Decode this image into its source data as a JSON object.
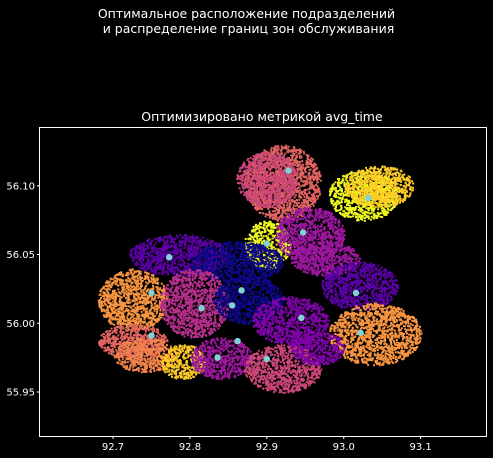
{
  "figure": {
    "suptitle_line1": "Оптимальное расположение подразделений",
    "suptitle_line2": " и распределение границ зон обслуживания"
  },
  "chart_data": {
    "type": "scatter",
    "title": "Оптимизировано метрикой avg_time",
    "xlabel": "",
    "ylabel": "",
    "xlim": [
      92.605,
      93.185
    ],
    "ylim": [
      55.918,
      56.142
    ],
    "xticks": [
      92.7,
      92.8,
      92.9,
      93.0,
      93.1
    ],
    "yticks": [
      55.95,
      56.0,
      56.05,
      56.1
    ],
    "grid": false,
    "legend": "none",
    "colormap": "plasma",
    "zone_colors": [
      "#0d0887",
      "#5c01a6",
      "#7e03a8",
      "#9c179e",
      "#b52f8c",
      "#cc4778",
      "#e16462",
      "#f2844b",
      "#f89540",
      "#fdca26",
      "#f0f921"
    ],
    "center_color": "#7fd3d6",
    "centers": [
      {
        "x": 92.928,
        "y": 56.111
      },
      {
        "x": 93.032,
        "y": 56.091
      },
      {
        "x": 92.947,
        "y": 56.066
      },
      {
        "x": 92.9,
        "y": 56.058
      },
      {
        "x": 92.773,
        "y": 56.048
      },
      {
        "x": 92.75,
        "y": 56.022
      },
      {
        "x": 92.867,
        "y": 56.024
      },
      {
        "x": 93.016,
        "y": 56.022
      },
      {
        "x": 92.855,
        "y": 56.013
      },
      {
        "x": 92.815,
        "y": 56.011
      },
      {
        "x": 92.945,
        "y": 56.004
      },
      {
        "x": 92.75,
        "y": 55.991
      },
      {
        "x": 93.022,
        "y": 55.993
      },
      {
        "x": 92.862,
        "y": 55.987
      },
      {
        "x": 92.836,
        "y": 55.975
      },
      {
        "x": 92.9,
        "y": 55.974
      }
    ],
    "zones": [
      {
        "color": "#e16462",
        "x": [
          92.87,
          92.97
        ],
        "y": [
          56.075,
          56.13
        ]
      },
      {
        "color": "#cc4778",
        "x": [
          92.86,
          92.94
        ],
        "y": [
          56.085,
          56.125
        ]
      },
      {
        "color": "#f0f921",
        "x": [
          92.98,
          93.07
        ],
        "y": [
          56.075,
          56.112
        ]
      },
      {
        "color": "#fdca26",
        "x": [
          93.0,
          93.09
        ],
        "y": [
          56.085,
          56.115
        ]
      },
      {
        "color": "#f0f921",
        "x": [
          92.87,
          92.93
        ],
        "y": [
          56.04,
          56.075
        ]
      },
      {
        "color": "#9c179e",
        "x": [
          92.91,
          93.0
        ],
        "y": [
          56.045,
          56.085
        ]
      },
      {
        "color": "#9c179e",
        "x": [
          92.93,
          93.02
        ],
        "y": [
          56.035,
          56.06
        ]
      },
      {
        "color": "#5c01a6",
        "x": [
          92.72,
          92.85
        ],
        "y": [
          56.035,
          56.065
        ]
      },
      {
        "color": "#0d0887",
        "x": [
          92.8,
          92.92
        ],
        "y": [
          56.03,
          56.06
        ]
      },
      {
        "color": "#f89540",
        "x": [
          92.68,
          92.77
        ],
        "y": [
          55.995,
          56.04
        ]
      },
      {
        "color": "#b52f8c",
        "x": [
          92.76,
          92.85
        ],
        "y": [
          55.99,
          56.04
        ]
      },
      {
        "color": "#0d0887",
        "x": [
          92.83,
          92.92
        ],
        "y": [
          56.0,
          56.035
        ]
      },
      {
        "color": "#7e03a8",
        "x": [
          92.88,
          92.98
        ],
        "y": [
          55.985,
          56.02
        ]
      },
      {
        "color": "#5c01a6",
        "x": [
          92.97,
          93.07
        ],
        "y": [
          56.01,
          56.045
        ]
      },
      {
        "color": "#f89540",
        "x": [
          92.98,
          93.1
        ],
        "y": [
          55.97,
          56.015
        ]
      },
      {
        "color": "#e16462",
        "x": [
          92.68,
          92.77
        ],
        "y": [
          55.975,
          56.0
        ]
      },
      {
        "color": "#f2844b",
        "x": [
          92.7,
          92.78
        ],
        "y": [
          55.965,
          55.99
        ]
      },
      {
        "color": "#fdca26",
        "x": [
          92.76,
          92.82
        ],
        "y": [
          55.96,
          55.985
        ]
      },
      {
        "color": "#9c179e",
        "x": [
          92.8,
          92.88
        ],
        "y": [
          55.96,
          55.99
        ]
      },
      {
        "color": "#cc4778",
        "x": [
          92.87,
          92.97
        ],
        "y": [
          55.95,
          55.985
        ]
      },
      {
        "color": "#7e03a8",
        "x": [
          92.93,
          93.0
        ],
        "y": [
          55.97,
          55.995
        ]
      }
    ]
  }
}
